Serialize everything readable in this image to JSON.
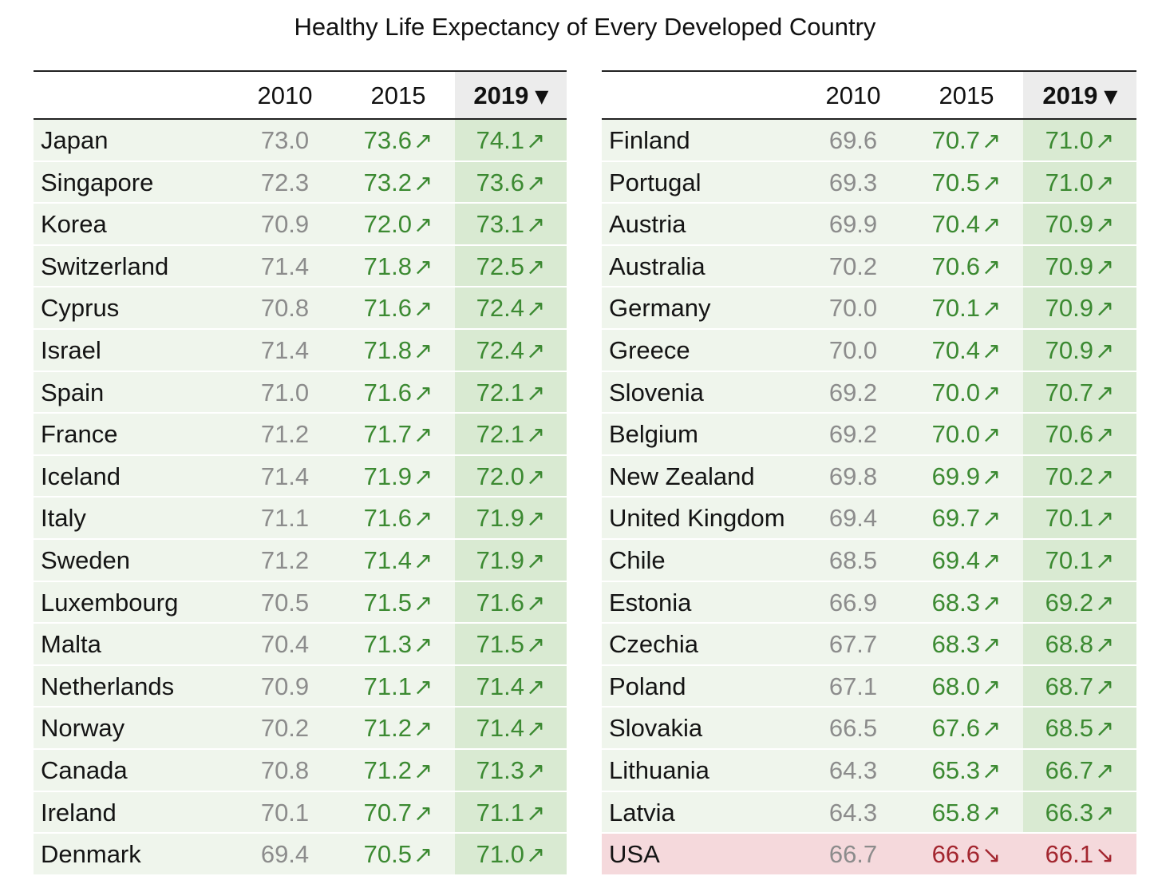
{
  "title": "Healthy Life Expectancy of Every Developed Country",
  "headers": {
    "y2010": "2010",
    "y2015": "2015",
    "y2019": "2019 ▾"
  },
  "colors": {
    "up_text": "#3c8a32",
    "down_text": "#a3262f",
    "up_bg": "#eff5ec",
    "up_sorted_bg": "#d9ead2",
    "down_bg": "#f5d9dc",
    "baseline_text": "#8c8c8c"
  },
  "chart_data": {
    "type": "table",
    "title": "Healthy Life Expectancy of Every Developed Country",
    "columns": [
      "2010",
      "2015",
      "2019"
    ],
    "sorted_by": "2019",
    "sort_order": "descending",
    "left": [
      {
        "country": "Japan",
        "y2010": "73.0",
        "y2015": "73.6",
        "y2019": "74.1",
        "trend15": "up",
        "trend19": "up"
      },
      {
        "country": "Singapore",
        "y2010": "72.3",
        "y2015": "73.2",
        "y2019": "73.6",
        "trend15": "up",
        "trend19": "up"
      },
      {
        "country": "Korea",
        "y2010": "70.9",
        "y2015": "72.0",
        "y2019": "73.1",
        "trend15": "up",
        "trend19": "up"
      },
      {
        "country": "Switzerland",
        "y2010": "71.4",
        "y2015": "71.8",
        "y2019": "72.5",
        "trend15": "up",
        "trend19": "up"
      },
      {
        "country": "Cyprus",
        "y2010": "70.8",
        "y2015": "71.6",
        "y2019": "72.4",
        "trend15": "up",
        "trend19": "up"
      },
      {
        "country": "Israel",
        "y2010": "71.4",
        "y2015": "71.8",
        "y2019": "72.4",
        "trend15": "up",
        "trend19": "up"
      },
      {
        "country": "Spain",
        "y2010": "71.0",
        "y2015": "71.6",
        "y2019": "72.1",
        "trend15": "up",
        "trend19": "up"
      },
      {
        "country": "France",
        "y2010": "71.2",
        "y2015": "71.7",
        "y2019": "72.1",
        "trend15": "up",
        "trend19": "up"
      },
      {
        "country": "Iceland",
        "y2010": "71.4",
        "y2015": "71.9",
        "y2019": "72.0",
        "trend15": "up",
        "trend19": "up"
      },
      {
        "country": "Italy",
        "y2010": "71.1",
        "y2015": "71.6",
        "y2019": "71.9",
        "trend15": "up",
        "trend19": "up"
      },
      {
        "country": "Sweden",
        "y2010": "71.2",
        "y2015": "71.4",
        "y2019": "71.9",
        "trend15": "up",
        "trend19": "up"
      },
      {
        "country": "Luxembourg",
        "y2010": "70.5",
        "y2015": "71.5",
        "y2019": "71.6",
        "trend15": "up",
        "trend19": "up"
      },
      {
        "country": "Malta",
        "y2010": "70.4",
        "y2015": "71.3",
        "y2019": "71.5",
        "trend15": "up",
        "trend19": "up"
      },
      {
        "country": "Netherlands",
        "y2010": "70.9",
        "y2015": "71.1",
        "y2019": "71.4",
        "trend15": "up",
        "trend19": "up"
      },
      {
        "country": "Norway",
        "y2010": "70.2",
        "y2015": "71.2",
        "y2019": "71.4",
        "trend15": "up",
        "trend19": "up"
      },
      {
        "country": "Canada",
        "y2010": "70.8",
        "y2015": "71.2",
        "y2019": "71.3",
        "trend15": "up",
        "trend19": "up"
      },
      {
        "country": "Ireland",
        "y2010": "70.1",
        "y2015": "70.7",
        "y2019": "71.1",
        "trend15": "up",
        "trend19": "up"
      },
      {
        "country": "Denmark",
        "y2010": "69.4",
        "y2015": "70.5",
        "y2019": "71.0",
        "trend15": "up",
        "trend19": "up"
      }
    ],
    "right": [
      {
        "country": "Finland",
        "y2010": "69.6",
        "y2015": "70.7",
        "y2019": "71.0",
        "trend15": "up",
        "trend19": "up"
      },
      {
        "country": "Portugal",
        "y2010": "69.3",
        "y2015": "70.5",
        "y2019": "71.0",
        "trend15": "up",
        "trend19": "up"
      },
      {
        "country": "Austria",
        "y2010": "69.9",
        "y2015": "70.4",
        "y2019": "70.9",
        "trend15": "up",
        "trend19": "up"
      },
      {
        "country": "Australia",
        "y2010": "70.2",
        "y2015": "70.6",
        "y2019": "70.9",
        "trend15": "up",
        "trend19": "up"
      },
      {
        "country": "Germany",
        "y2010": "70.0",
        "y2015": "70.1",
        "y2019": "70.9",
        "trend15": "up",
        "trend19": "up"
      },
      {
        "country": "Greece",
        "y2010": "70.0",
        "y2015": "70.4",
        "y2019": "70.9",
        "trend15": "up",
        "trend19": "up"
      },
      {
        "country": "Slovenia",
        "y2010": "69.2",
        "y2015": "70.0",
        "y2019": "70.7",
        "trend15": "up",
        "trend19": "up"
      },
      {
        "country": "Belgium",
        "y2010": "69.2",
        "y2015": "70.0",
        "y2019": "70.6",
        "trend15": "up",
        "trend19": "up"
      },
      {
        "country": "New Zealand",
        "y2010": "69.8",
        "y2015": "69.9",
        "y2019": "70.2",
        "trend15": "up",
        "trend19": "up"
      },
      {
        "country": "United Kingdom",
        "y2010": "69.4",
        "y2015": "69.7",
        "y2019": "70.1",
        "trend15": "up",
        "trend19": "up"
      },
      {
        "country": "Chile",
        "y2010": "68.5",
        "y2015": "69.4",
        "y2019": "70.1",
        "trend15": "up",
        "trend19": "up"
      },
      {
        "country": "Estonia",
        "y2010": "66.9",
        "y2015": "68.3",
        "y2019": "69.2",
        "trend15": "up",
        "trend19": "up"
      },
      {
        "country": "Czechia",
        "y2010": "67.7",
        "y2015": "68.3",
        "y2019": "68.8",
        "trend15": "up",
        "trend19": "up"
      },
      {
        "country": "Poland",
        "y2010": "67.1",
        "y2015": "68.0",
        "y2019": "68.7",
        "trend15": "up",
        "trend19": "up"
      },
      {
        "country": "Slovakia",
        "y2010": "66.5",
        "y2015": "67.6",
        "y2019": "68.5",
        "trend15": "up",
        "trend19": "up"
      },
      {
        "country": "Lithuania",
        "y2010": "64.3",
        "y2015": "65.3",
        "y2019": "66.7",
        "trend15": "up",
        "trend19": "up"
      },
      {
        "country": "Latvia",
        "y2010": "64.3",
        "y2015": "65.8",
        "y2019": "66.3",
        "trend15": "up",
        "trend19": "up"
      },
      {
        "country": "USA",
        "y2010": "66.7",
        "y2015": "66.6",
        "y2019": "66.1",
        "trend15": "down",
        "trend19": "down"
      }
    ]
  }
}
